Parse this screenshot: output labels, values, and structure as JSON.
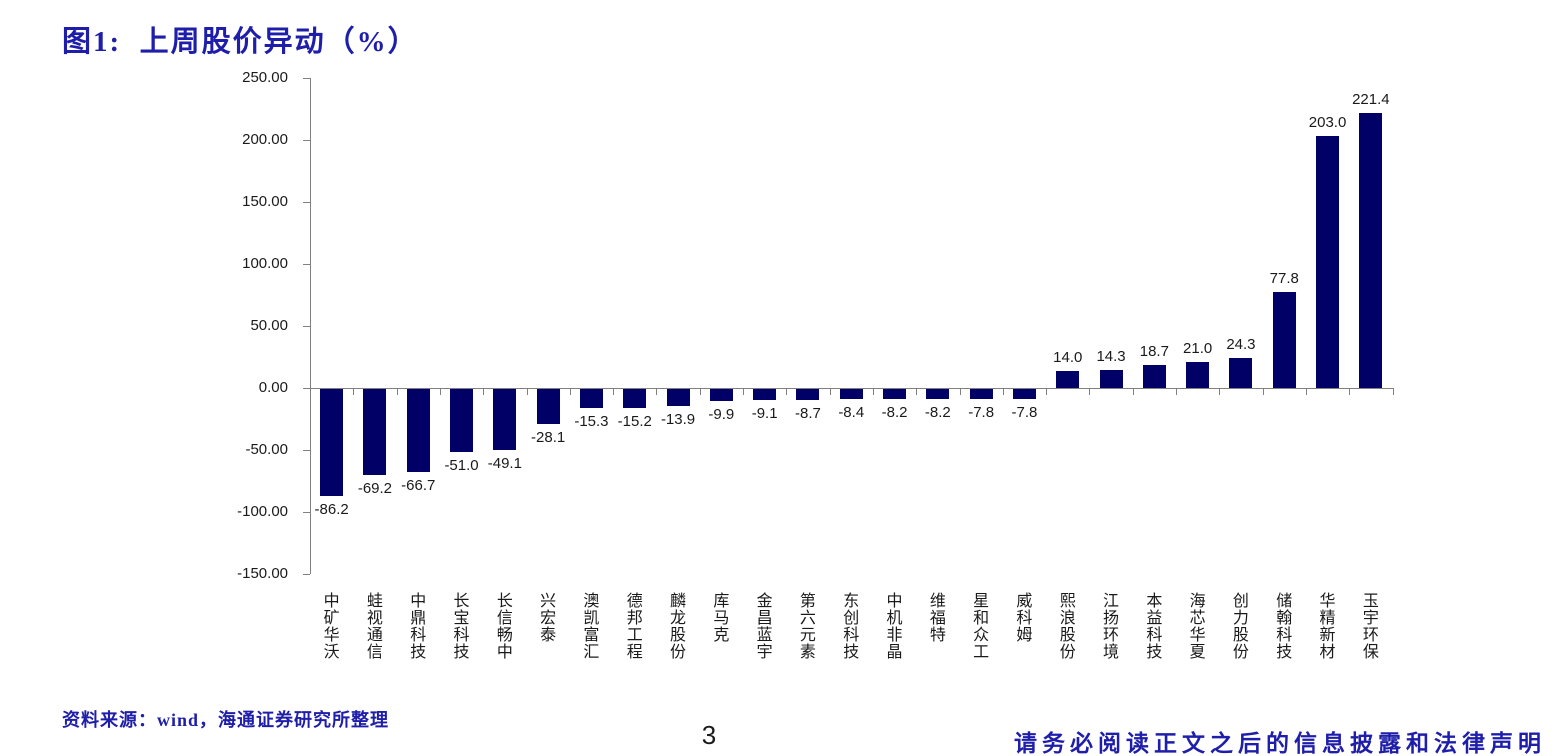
{
  "page": {
    "title": "图1:  上周股价异动（%）",
    "source_note": "资料来源：wind，海通证券研究所整理",
    "page_number": "3",
    "disclaimer": "请务必阅读正文之后的信息披露和法律声明"
  },
  "colors": {
    "accent_blue": "#1e1eaa",
    "bar_navy": "#000066",
    "axis_gray": "#808080",
    "label_black": "#1a1a1a"
  },
  "chart_data": {
    "type": "bar",
    "title": "上周股价异动（%）",
    "categories": [
      "中矿华沃",
      "蛙视通信",
      "中鼎科技",
      "长宝科技",
      "长信畅中",
      "兴宏泰",
      "澳凯富汇",
      "德邦工程",
      "麟龙股份",
      "库马克",
      "金昌蓝宇",
      "第六元素",
      "东创科技",
      "中机非晶",
      "维福特",
      "星和众工",
      "威科姆",
      "熙浪股份",
      "江扬环境",
      "本益科技",
      "海芯华夏",
      "创力股份",
      "储翰科技",
      "华精新材",
      "玉宇环保"
    ],
    "values": [
      -86.2,
      -69.2,
      -66.7,
      -51.0,
      -49.1,
      -28.1,
      -15.3,
      -15.2,
      -13.9,
      -9.9,
      -9.1,
      -8.7,
      -8.4,
      -8.2,
      -8.2,
      -7.8,
      -7.8,
      14.0,
      14.3,
      18.7,
      21.0,
      24.3,
      77.8,
      203.0,
      221.4
    ],
    "data_labels": [
      "-86.2",
      "-69.2",
      "-66.7",
      "-51.0",
      "-49.1",
      "-28.1",
      "-15.3",
      "-15.2",
      "-13.9",
      "-9.9",
      "-9.1",
      "-8.7",
      "-8.4",
      "-8.2",
      "-8.2",
      "-7.8",
      "-7.8",
      "14.0",
      "14.3",
      "18.7",
      "21.0",
      "24.3",
      "77.8",
      "203.0",
      "221.4"
    ],
    "xlabel": "",
    "ylabel": "",
    "ylim": [
      -150,
      250
    ],
    "ytick_step": 50,
    "y_tick_labels": [
      "250.00",
      "200.00",
      "150.00",
      "100.00",
      "50.00",
      "0.00",
      "-50.00",
      "-100.00",
      "-150.00"
    ],
    "grid": false,
    "legend": false,
    "bar_color": "#000066",
    "axis_color": "#808080"
  }
}
